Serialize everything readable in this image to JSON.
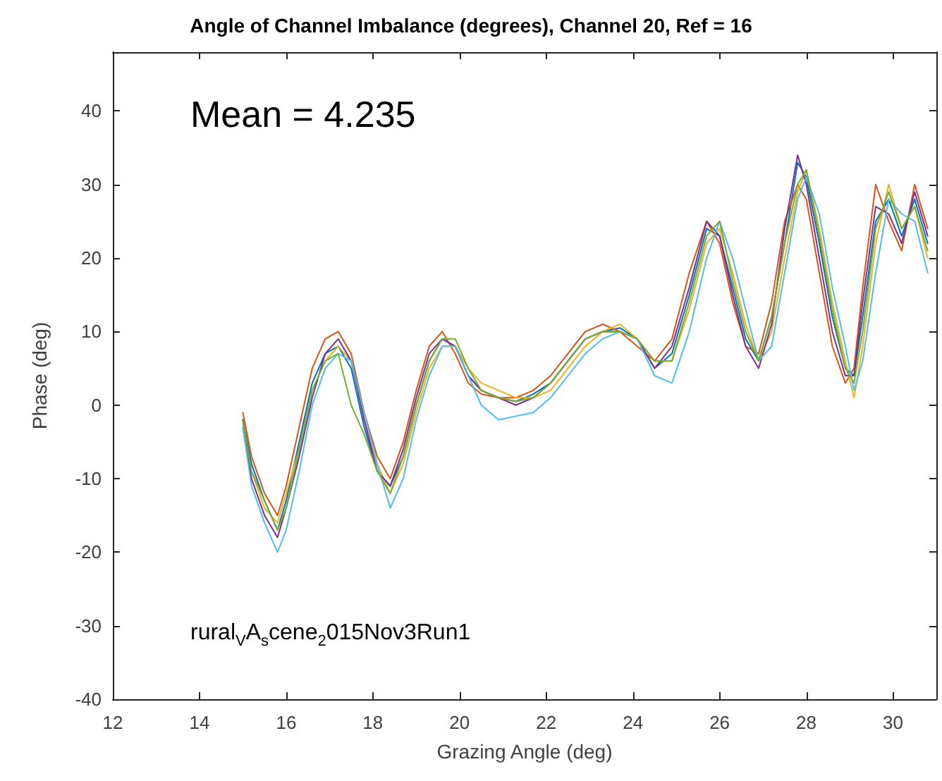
{
  "chart_data": {
    "type": "line",
    "title": "Angle of Channel Imbalance (degrees), Channel 20, Ref = 16",
    "xlabel": "Grazing Angle (deg)",
    "ylabel": "Phase (deg)",
    "annotations": [
      "Mean = 4.235",
      "rural$_{V}$A$_{s}$cene$_{2}$015Nov3Run1"
    ],
    "x": [
      15.0,
      15.2,
      15.5,
      15.8,
      16.0,
      16.3,
      16.6,
      16.9,
      17.2,
      17.5,
      17.8,
      18.1,
      18.4,
      18.7,
      19.0,
      19.3,
      19.6,
      19.9,
      20.2,
      20.5,
      20.9,
      21.3,
      21.7,
      22.1,
      22.5,
      22.9,
      23.3,
      23.7,
      24.1,
      24.5,
      24.9,
      25.3,
      25.7,
      26.0,
      26.3,
      26.6,
      26.9,
      27.2,
      27.5,
      27.8,
      28.0,
      28.3,
      28.6,
      28.9,
      29.1,
      29.3,
      29.6,
      29.9,
      30.2,
      30.5,
      30.8
    ],
    "series": [
      {
        "color": "#0072bd",
        "values": [
          -2,
          -8,
          -13,
          -17,
          -13,
          -5,
          3,
          7,
          8,
          5,
          -3,
          -9,
          -11,
          -7,
          0,
          6,
          9,
          8,
          4,
          2,
          1,
          0.5,
          1.5,
          3,
          6,
          9,
          10,
          10.5,
          9,
          5,
          7,
          15,
          24,
          23,
          16,
          9,
          6,
          12,
          22,
          33,
          31,
          22,
          12,
          5,
          4,
          12,
          25,
          28,
          23,
          28,
          22
        ]
      },
      {
        "color": "#d95319",
        "values": [
          -1,
          -7,
          -12,
          -15,
          -11,
          -3,
          5,
          9,
          10,
          7,
          -1,
          -7,
          -10,
          -5,
          2,
          8,
          10,
          7,
          3,
          1.5,
          1,
          1,
          2,
          4,
          7,
          10,
          11,
          10,
          8,
          6,
          9,
          18,
          25,
          22,
          14,
          8,
          7,
          14,
          25,
          30,
          28,
          18,
          8,
          3,
          5,
          16,
          30,
          25,
          21,
          30,
          24
        ]
      },
      {
        "color": "#edb120",
        "values": [
          -3,
          -9,
          -14,
          -16,
          -12,
          -6,
          2,
          6,
          8,
          6,
          -2,
          -8,
          -12,
          -8,
          -1,
          5,
          8,
          8,
          5,
          3,
          2,
          1,
          1,
          2,
          5,
          8,
          10,
          11,
          9,
          6,
          6,
          13,
          22,
          24,
          18,
          11,
          6,
          10,
          20,
          29,
          32,
          24,
          14,
          6,
          1,
          8,
          22,
          30,
          24,
          27,
          20
        ]
      },
      {
        "color": "#7e2f8e",
        "values": [
          -2,
          -10,
          -15,
          -18,
          -14,
          -7,
          1,
          7,
          9,
          6,
          -2,
          -9,
          -11,
          -6,
          1,
          7,
          9,
          8,
          4,
          2,
          1,
          0,
          1,
          3,
          6,
          9,
          10,
          10,
          9,
          5,
          8,
          16,
          25,
          23,
          15,
          8,
          5,
          11,
          24,
          34,
          30,
          20,
          10,
          4,
          4,
          14,
          27,
          26,
          22,
          29,
          23
        ]
      },
      {
        "color": "#4dbeee",
        "values": [
          -3,
          -11,
          -16,
          -20,
          -17,
          -9,
          0,
          5,
          7,
          6,
          -1,
          -8,
          -14,
          -10,
          -2,
          4,
          8,
          8,
          4,
          0,
          -2,
          -1.5,
          -1,
          1,
          4,
          7,
          9,
          10,
          9,
          4,
          3,
          10,
          20,
          25,
          20,
          13,
          6,
          8,
          18,
          28,
          31,
          26,
          16,
          8,
          2,
          6,
          18,
          28,
          26,
          25,
          18
        ]
      },
      {
        "color": "#77ac30",
        "values": [
          -2,
          -9,
          -13,
          -17,
          -14,
          -6,
          2,
          6,
          7,
          0,
          -4,
          -9,
          -12,
          -7,
          0,
          6,
          9,
          9,
          5,
          2,
          1,
          0.5,
          1,
          3,
          6,
          9,
          10,
          10,
          9,
          6,
          6,
          14,
          23,
          25,
          17,
          10,
          6,
          12,
          22,
          30,
          32,
          23,
          13,
          5,
          3,
          10,
          24,
          29,
          24,
          27,
          21
        ]
      }
    ],
    "xlim": [
      12,
      31
    ],
    "ylim": [
      -40,
      48
    ],
    "xticks": [
      12,
      14,
      16,
      18,
      20,
      22,
      24,
      26,
      28,
      30
    ],
    "yticks": [
      -40,
      -30,
      -20,
      -10,
      0,
      10,
      20,
      30,
      40
    ],
    "grid": false,
    "marker": "none",
    "line_style": "solid"
  }
}
